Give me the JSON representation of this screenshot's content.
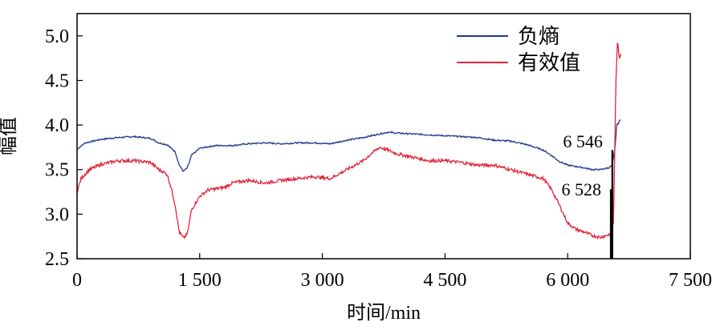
{
  "chart_data": {
    "type": "line",
    "title": "",
    "xlabel": "时间/min",
    "ylabel": "幅值",
    "xlim": [
      0,
      7500
    ],
    "ylim": [
      2.5,
      5.25
    ],
    "x_ticks": [
      {
        "value": 0,
        "label": "0"
      },
      {
        "value": 1500,
        "label": "1 500"
      },
      {
        "value": 3000,
        "label": "3 000"
      },
      {
        "value": 4500,
        "label": "4 500"
      },
      {
        "value": 6000,
        "label": "6 000"
      },
      {
        "value": 7500,
        "label": "7 500"
      }
    ],
    "y_ticks": [
      {
        "value": 2.5,
        "label": "2.5"
      },
      {
        "value": 3.0,
        "label": "3.0"
      },
      {
        "value": 3.5,
        "label": "3.5"
      },
      {
        "value": 4.0,
        "label": "4.0"
      },
      {
        "value": 4.5,
        "label": "4.5"
      },
      {
        "value": 5.0,
        "label": "5.0"
      }
    ],
    "legend_position": "top-right",
    "series": [
      {
        "name": "负熵",
        "color": "#1f3a8f",
        "points": [
          [
            0,
            3.73
          ],
          [
            100,
            3.8
          ],
          [
            300,
            3.84
          ],
          [
            500,
            3.86
          ],
          [
            700,
            3.87
          ],
          [
            900,
            3.85
          ],
          [
            1000,
            3.8
          ],
          [
            1100,
            3.78
          ],
          [
            1200,
            3.7
          ],
          [
            1250,
            3.55
          ],
          [
            1300,
            3.48
          ],
          [
            1350,
            3.52
          ],
          [
            1400,
            3.66
          ],
          [
            1500,
            3.74
          ],
          [
            1700,
            3.77
          ],
          [
            1900,
            3.77
          ],
          [
            2100,
            3.79
          ],
          [
            2300,
            3.8
          ],
          [
            2500,
            3.79
          ],
          [
            2700,
            3.8
          ],
          [
            2900,
            3.8
          ],
          [
            3100,
            3.79
          ],
          [
            3300,
            3.83
          ],
          [
            3500,
            3.86
          ],
          [
            3700,
            3.9
          ],
          [
            3800,
            3.92
          ],
          [
            3900,
            3.91
          ],
          [
            4100,
            3.9
          ],
          [
            4300,
            3.89
          ],
          [
            4500,
            3.88
          ],
          [
            4700,
            3.87
          ],
          [
            4900,
            3.86
          ],
          [
            5100,
            3.83
          ],
          [
            5300,
            3.82
          ],
          [
            5500,
            3.78
          ],
          [
            5700,
            3.72
          ],
          [
            5800,
            3.66
          ],
          [
            5900,
            3.59
          ],
          [
            6000,
            3.55
          ],
          [
            6200,
            3.52
          ],
          [
            6300,
            3.5
          ],
          [
            6400,
            3.5
          ],
          [
            6500,
            3.52
          ],
          [
            6546,
            3.55
          ],
          [
            6580,
            3.75
          ],
          [
            6600,
            4.0
          ],
          [
            6620,
            4.02
          ],
          [
            6640,
            4.05
          ]
        ]
      },
      {
        "name": "有效值",
        "color": "#e0263a",
        "points": [
          [
            0,
            3.25
          ],
          [
            50,
            3.4
          ],
          [
            150,
            3.5
          ],
          [
            300,
            3.56
          ],
          [
            500,
            3.6
          ],
          [
            700,
            3.6
          ],
          [
            900,
            3.58
          ],
          [
            1000,
            3.5
          ],
          [
            1100,
            3.45
          ],
          [
            1150,
            3.3
          ],
          [
            1200,
            3.1
          ],
          [
            1250,
            2.8
          ],
          [
            1300,
            2.73
          ],
          [
            1350,
            2.78
          ],
          [
            1400,
            3.05
          ],
          [
            1500,
            3.2
          ],
          [
            1600,
            3.27
          ],
          [
            1800,
            3.3
          ],
          [
            1900,
            3.35
          ],
          [
            2100,
            3.38
          ],
          [
            2300,
            3.35
          ],
          [
            2500,
            3.38
          ],
          [
            2700,
            3.4
          ],
          [
            2900,
            3.42
          ],
          [
            3100,
            3.4
          ],
          [
            3300,
            3.5
          ],
          [
            3500,
            3.6
          ],
          [
            3600,
            3.68
          ],
          [
            3700,
            3.75
          ],
          [
            3800,
            3.72
          ],
          [
            3900,
            3.68
          ],
          [
            4100,
            3.64
          ],
          [
            4300,
            3.6
          ],
          [
            4500,
            3.6
          ],
          [
            4700,
            3.58
          ],
          [
            4900,
            3.55
          ],
          [
            5100,
            3.55
          ],
          [
            5300,
            3.5
          ],
          [
            5500,
            3.45
          ],
          [
            5700,
            3.4
          ],
          [
            5800,
            3.28
          ],
          [
            5900,
            3.1
          ],
          [
            6000,
            2.9
          ],
          [
            6100,
            2.83
          ],
          [
            6200,
            2.8
          ],
          [
            6300,
            2.76
          ],
          [
            6400,
            2.74
          ],
          [
            6500,
            2.77
          ],
          [
            6528,
            2.78
          ],
          [
            6560,
            2.9
          ],
          [
            6590,
            4.5
          ],
          [
            6610,
            4.95
          ],
          [
            6630,
            4.75
          ],
          [
            6650,
            4.8
          ]
        ]
      }
    ],
    "annotations": [
      {
        "label": "6 546",
        "x": 6546,
        "y_from": 2.5,
        "y_to": 3.72,
        "text_y": 3.82
      },
      {
        "label": "6 528",
        "x": 6528,
        "y_from": 2.5,
        "y_to": 3.28,
        "text_y": 3.28
      }
    ]
  }
}
